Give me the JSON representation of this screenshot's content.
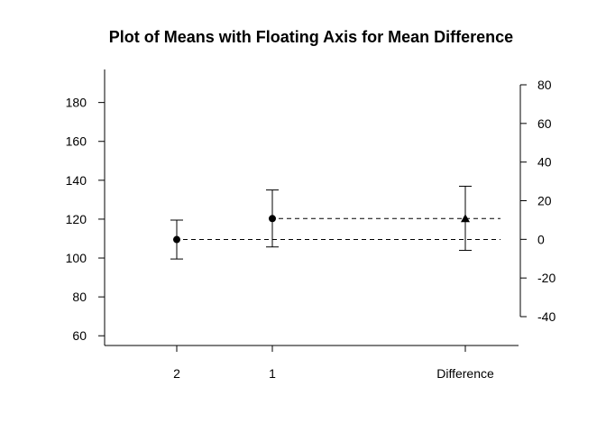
{
  "chart_data": {
    "type": "scatter",
    "title": "Plot of Means with Floating Axis for Mean Difference",
    "categories": [
      "2",
      "1",
      "Difference"
    ],
    "left_axis": {
      "ticks": [
        60,
        80,
        100,
        120,
        140,
        160,
        180
      ],
      "range": [
        55,
        197
      ]
    },
    "right_axis": {
      "ticks": [
        -40,
        -20,
        0,
        20,
        40,
        60,
        80
      ],
      "range": [
        -40,
        80
      ]
    },
    "means": [
      {
        "category": "2",
        "mean": 109.5,
        "lower": 99.5,
        "upper": 119.5,
        "marker": "circle"
      },
      {
        "category": "1",
        "mean": 120.3,
        "lower": 105.7,
        "upper": 135.0,
        "marker": "circle"
      }
    ],
    "difference": {
      "category": "Difference",
      "mean": 10.8,
      "lower": -5.7,
      "upper": 27.5,
      "marker": "triangle"
    },
    "reference_lines": [
      {
        "from": "2",
        "value": 109.5,
        "right_axis_value": 0
      },
      {
        "from": "1",
        "value": 120.3,
        "right_axis_value": 10.8
      }
    ],
    "grid": false,
    "legend": "none"
  }
}
